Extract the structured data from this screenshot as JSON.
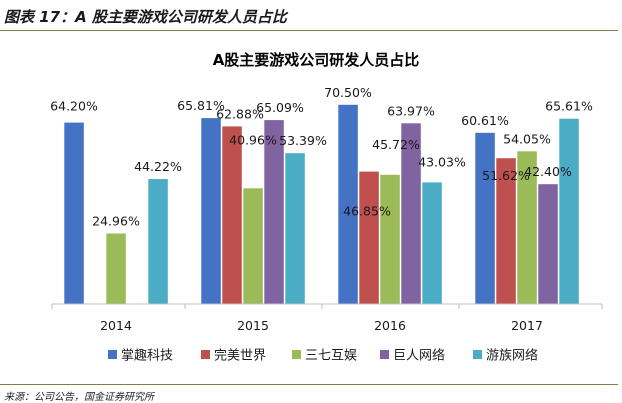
{
  "figure": {
    "caption": "图表 17：A 股主要游戏公司研发人员占比",
    "source": "来源：公司公告，国金证券研究所"
  },
  "chart_data": {
    "type": "bar",
    "title": "A股主要游戏公司研发人员占比",
    "categories": [
      "2014",
      "2015",
      "2016",
      "2017"
    ],
    "ylim": [
      0,
      80
    ],
    "grid": false,
    "legend_position": "bottom",
    "series": [
      {
        "name": "掌趣科技",
        "color": "#4472c4",
        "values": [
          64.2,
          65.81,
          70.5,
          60.61
        ],
        "labels": [
          "64.20%",
          "65.81%",
          "70.50%",
          "60.61%"
        ]
      },
      {
        "name": "完美世界",
        "color": "#c0504d",
        "values": [
          null,
          62.88,
          46.85,
          51.62
        ],
        "labels": [
          "",
          "62.88%",
          "46.85%",
          "51.62%"
        ]
      },
      {
        "name": "三七互娱",
        "color": "#9bbb59",
        "values": [
          24.96,
          40.96,
          45.72,
          54.05
        ],
        "labels": [
          "24.96%",
          "40.96%",
          "45.72%",
          "54.05%"
        ]
      },
      {
        "name": "巨人网络",
        "color": "#8064a2",
        "values": [
          null,
          65.09,
          63.97,
          42.4
        ],
        "labels": [
          "",
          "65.09%",
          "63.97%",
          "42.40%"
        ]
      },
      {
        "name": "游族网络",
        "color": "#4bacc6",
        "values": [
          44.22,
          53.39,
          43.03,
          65.61
        ],
        "labels": [
          "44.22%",
          "53.39%",
          "43.03%",
          "65.61%"
        ]
      }
    ]
  }
}
